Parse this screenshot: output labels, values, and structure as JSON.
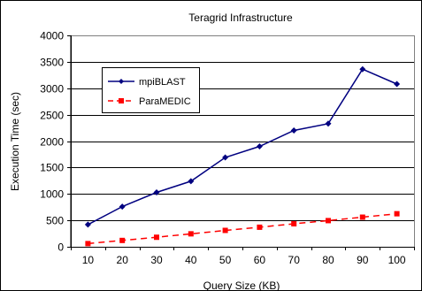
{
  "chart_data": {
    "type": "line",
    "title": "Teragrid Infrastructure",
    "xlabel": "Query Size (KB)",
    "ylabel": "Execution Time (sec)",
    "categories": [
      "10",
      "20",
      "30",
      "40",
      "50",
      "60",
      "70",
      "80",
      "90",
      "100"
    ],
    "ylim": [
      0,
      4000
    ],
    "yticks": [
      "0",
      "500",
      "1000",
      "1500",
      "2000",
      "2500",
      "3000",
      "3500",
      "4000"
    ],
    "grid": "horizontal",
    "legend_position": "top-left",
    "series": [
      {
        "name": "mpiBLAST",
        "color": "#000080",
        "line_style": "solid",
        "marker": "diamond",
        "values": [
          420,
          760,
          1030,
          1240,
          1690,
          1900,
          2200,
          2330,
          3360,
          3080
        ]
      },
      {
        "name": "ParaMEDIC",
        "color": "#ff0000",
        "line_style": "dashed",
        "marker": "square",
        "values": [
          60,
          120,
          180,
          245,
          310,
          370,
          435,
          495,
          560,
          625
        ]
      }
    ]
  }
}
